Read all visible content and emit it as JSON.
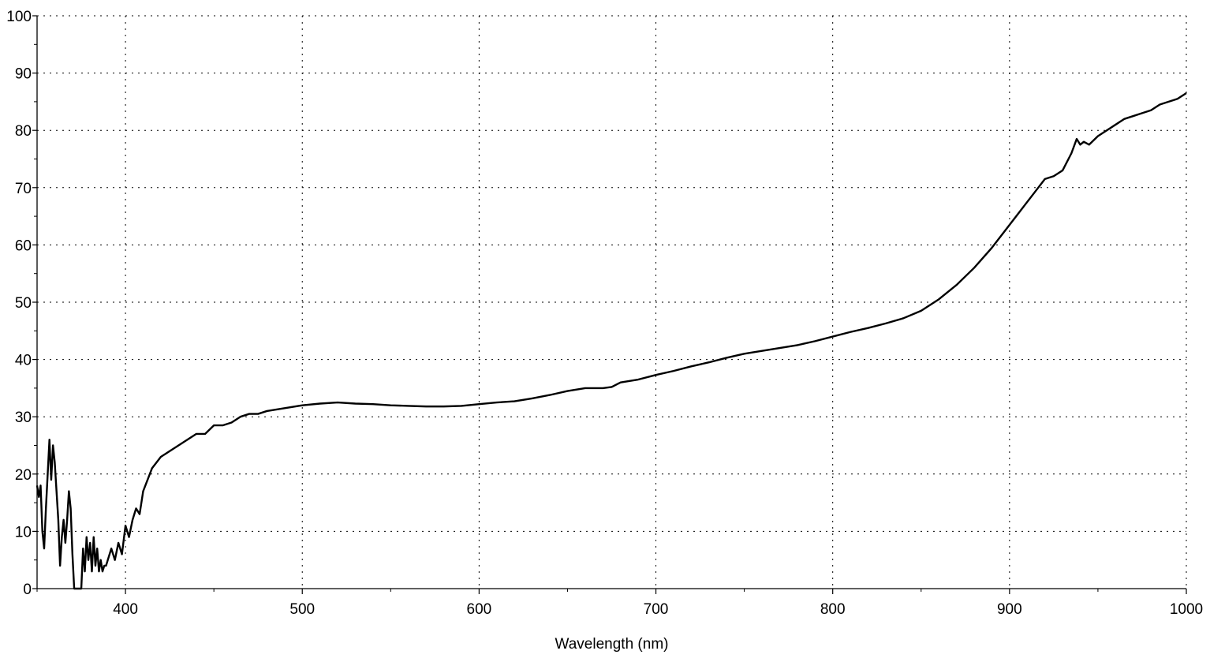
{
  "chart_data": {
    "type": "line",
    "title": "",
    "xlabel": "Wavelength (nm)",
    "ylabel": "",
    "xlim": [
      350,
      1000
    ],
    "ylim": [
      0,
      100
    ],
    "x_ticks": [
      400,
      500,
      600,
      700,
      800,
      900,
      1000
    ],
    "x_tick_labels": [
      "400",
      "500",
      "600",
      "700",
      "800",
      "900",
      "1000"
    ],
    "y_ticks": [
      0,
      10,
      20,
      30,
      40,
      50,
      60,
      70,
      80,
      90,
      100
    ],
    "y_tick_labels": [
      "0",
      "10",
      "20",
      "30",
      "40",
      "50",
      "60",
      "70",
      "80",
      "90",
      "100"
    ],
    "grid": true,
    "grid_style": "dotted",
    "line_color": "#000000",
    "series": [
      {
        "x": [
          350,
          351,
          352,
          353,
          354,
          355,
          356,
          357,
          358,
          359,
          360,
          361,
          362,
          363,
          364,
          365,
          366,
          367,
          368,
          369,
          370,
          371,
          372,
          373,
          374,
          375,
          376,
          377,
          378,
          379,
          380,
          381,
          382,
          383,
          384,
          385,
          386,
          387,
          388,
          389,
          390,
          392,
          394,
          396,
          398,
          400,
          402,
          404,
          406,
          408,
          410,
          415,
          420,
          425,
          430,
          435,
          440,
          445,
          450,
          455,
          460,
          465,
          470,
          475,
          480,
          490,
          500,
          510,
          520,
          530,
          540,
          550,
          560,
          570,
          580,
          590,
          600,
          610,
          620,
          630,
          640,
          650,
          660,
          670,
          675,
          680,
          690,
          700,
          710,
          720,
          730,
          740,
          750,
          760,
          770,
          780,
          790,
          800,
          810,
          820,
          830,
          840,
          850,
          860,
          870,
          880,
          890,
          895,
          900,
          905,
          910,
          915,
          920,
          925,
          930,
          935,
          938,
          940,
          942,
          945,
          950,
          955,
          960,
          965,
          970,
          975,
          980,
          985,
          990,
          995,
          1000
        ],
        "y": [
          18,
          16,
          18,
          10,
          7,
          14,
          20,
          26,
          19,
          25,
          22,
          17,
          12,
          4,
          9,
          12,
          8,
          12,
          17,
          14,
          6,
          0,
          0,
          0,
          0,
          0,
          7,
          3,
          9,
          5,
          8,
          3,
          9,
          4,
          7,
          3,
          5,
          3,
          4,
          4,
          5,
          7,
          5,
          8,
          6,
          11,
          9,
          12,
          14,
          13,
          17,
          21,
          23,
          24,
          25,
          26,
          27,
          27,
          28.5,
          28.5,
          29,
          30,
          30.5,
          30.5,
          31,
          31.5,
          32,
          32.3,
          32.5,
          32.3,
          32.2,
          32,
          31.9,
          31.8,
          31.8,
          31.9,
          32.2,
          32.5,
          32.7,
          33.2,
          33.8,
          34.5,
          35,
          35,
          35.2,
          36,
          36.5,
          37.3,
          38,
          38.8,
          39.5,
          40.3,
          41,
          41.5,
          42,
          42.5,
          43.2,
          44,
          44.8,
          45.5,
          46.3,
          47.2,
          48.5,
          50.5,
          53,
          56,
          59.5,
          61.5,
          63.5,
          65.5,
          67.5,
          69.5,
          71.5,
          72,
          73,
          76,
          78.5,
          77.5,
          78,
          77.5,
          79,
          80,
          81,
          82,
          82.5,
          83,
          83.5,
          84.5,
          85,
          85.5,
          86.5
        ]
      }
    ]
  }
}
